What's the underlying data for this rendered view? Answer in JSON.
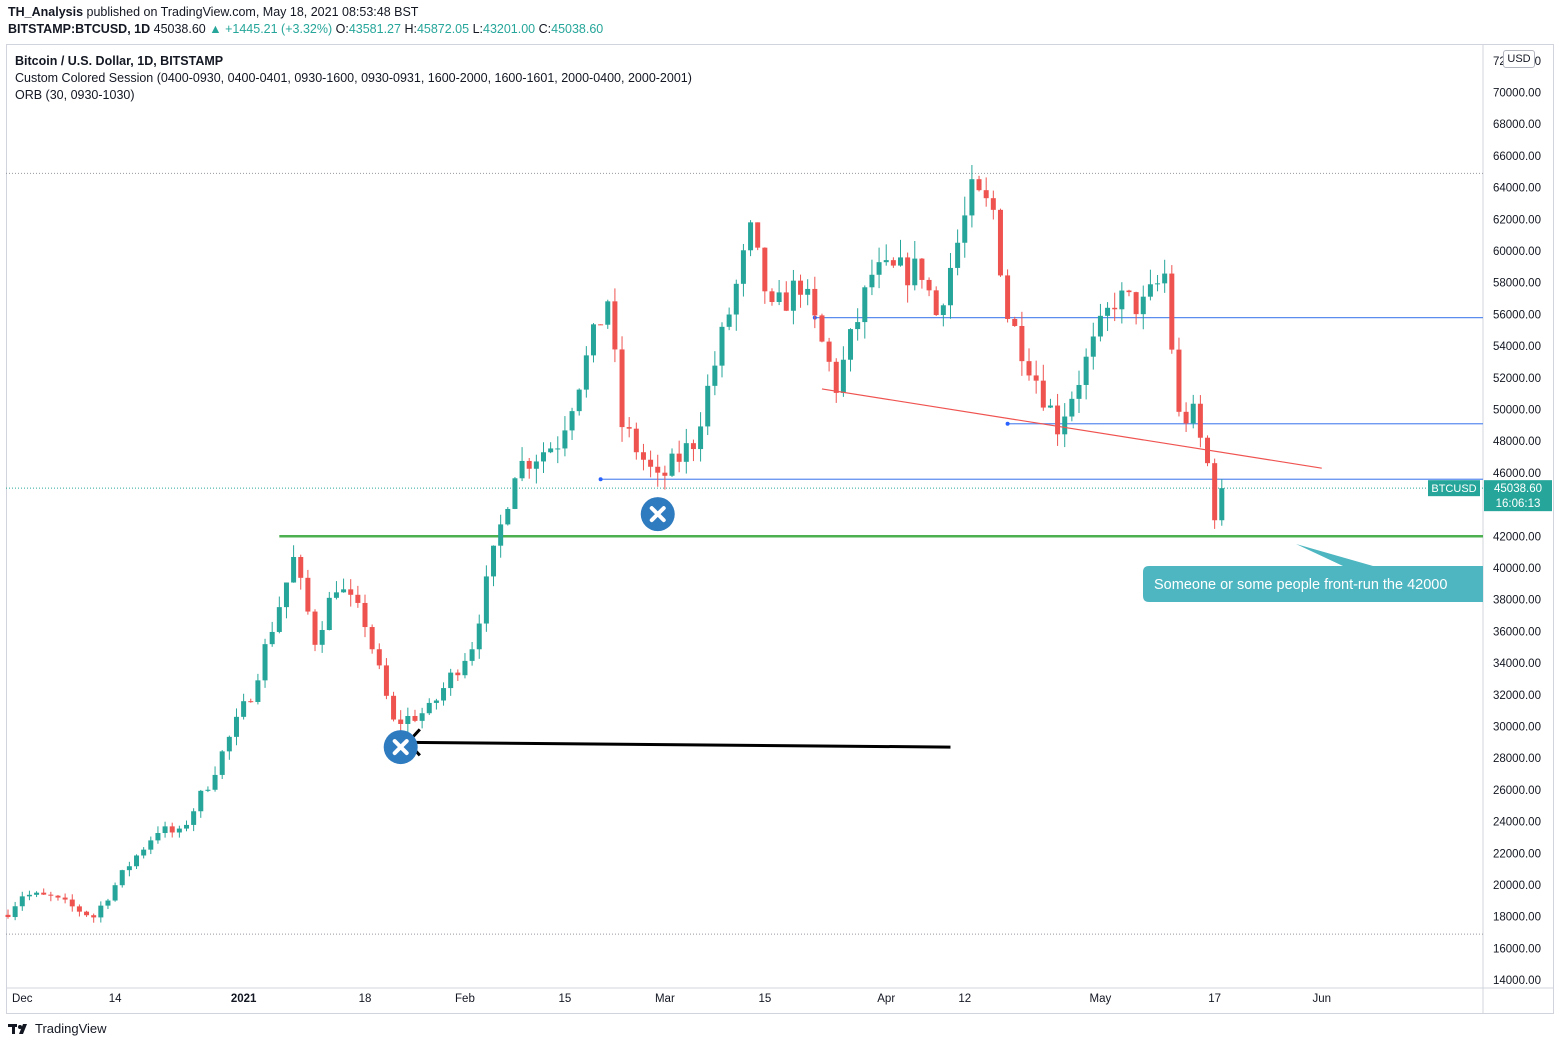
{
  "header": {
    "author": "TH_Analysis",
    "published": "published on TradingView.com, May 18, 2021 08:53:48 BST",
    "symbol": "BITSTAMP:BTCUSD, 1D",
    "last": "45038.60",
    "change": "▲ +1445.21 (+3.32%)",
    "o_label": "O:",
    "o_value": "43581.27",
    "h_label": "H:",
    "h_value": "45872.05",
    "l_label": "L:",
    "l_value": "43201.00",
    "c_label": "C:",
    "c_value": "45038.60"
  },
  "legend": {
    "title": "Bitcoin / U.S. Dollar, 1D, BITSTAMP",
    "session": "Custom Colored Session (0400-0930, 0400-0401, 0930-1600, 0930-0931, 1600-2000, 1600-1601, 2000-0400, 2000-2001)",
    "orb": "ORB (30, 0930-1030)"
  },
  "currency": "USD",
  "price_label": {
    "symbol": "BTCUSD",
    "price": "45038.60",
    "countdown": "16:06:13"
  },
  "callout": "Someone or some people front-run the 42000",
  "footer": {
    "brand": "TradingView"
  },
  "colors": {
    "up": "#26a69a",
    "down": "#ef5350",
    "green_line": "#4caf50",
    "blue_line": "#5b8def",
    "red_line": "#ef5350",
    "callout": "#4db6c0",
    "marker": "#2f7bbf"
  },
  "chart_data": {
    "type": "candlestick",
    "ylim": [
      13500,
      73000
    ],
    "y_ticks": [
      72000,
      70000,
      68000,
      66000,
      64000,
      62000,
      60000,
      58000,
      56000,
      54000,
      52000,
      50000,
      48000,
      46000,
      44000,
      42000,
      40000,
      38000,
      36000,
      34000,
      32000,
      30000,
      28000,
      26000,
      24000,
      22000,
      20000,
      18000,
      16000,
      14000
    ],
    "x_ticks": [
      {
        "label": "Dec",
        "date": "2020-12-01"
      },
      {
        "label": "14",
        "date": "2020-12-14"
      },
      {
        "label": "2021",
        "date": "2021-01-01"
      },
      {
        "label": "18",
        "date": "2021-01-18"
      },
      {
        "label": "Feb",
        "date": "2021-02-01"
      },
      {
        "label": "15",
        "date": "2021-02-15"
      },
      {
        "label": "Mar",
        "date": "2021-03-01"
      },
      {
        "label": "15",
        "date": "2021-03-15"
      },
      {
        "label": "Apr",
        "date": "2021-04-01"
      },
      {
        "label": "12",
        "date": "2021-04-12"
      },
      {
        "label": "May",
        "date": "2021-05-01"
      },
      {
        "label": "17",
        "date": "2021-05-17"
      },
      {
        "label": "Jun",
        "date": "2021-06-01"
      }
    ],
    "start_date": "2020-11-29",
    "anchors": [
      {
        "date": "2020-11-29",
        "price": 18300
      },
      {
        "date": "2020-12-01",
        "price": 19400
      },
      {
        "date": "2020-12-05",
        "price": 19200
      },
      {
        "date": "2020-12-11",
        "price": 18000
      },
      {
        "date": "2020-12-16",
        "price": 21300
      },
      {
        "date": "2020-12-20",
        "price": 23500
      },
      {
        "date": "2020-12-23",
        "price": 23200
      },
      {
        "date": "2020-12-27",
        "price": 26400
      },
      {
        "date": "2021-01-02",
        "price": 32100
      },
      {
        "date": "2021-01-08",
        "price": 40500
      },
      {
        "date": "2021-01-11",
        "price": 35500
      },
      {
        "date": "2021-01-14",
        "price": 39000
      },
      {
        "date": "2021-01-18",
        "price": 36600
      },
      {
        "date": "2021-01-22",
        "price": 30200
      },
      {
        "date": "2021-01-27",
        "price": 31000
      },
      {
        "date": "2021-02-02",
        "price": 35200
      },
      {
        "date": "2021-02-08",
        "price": 46300
      },
      {
        "date": "2021-02-14",
        "price": 48000
      },
      {
        "date": "2021-02-21",
        "price": 57000
      },
      {
        "date": "2021-02-23",
        "price": 49000
      },
      {
        "date": "2021-02-28",
        "price": 45400
      },
      {
        "date": "2021-03-05",
        "price": 48000
      },
      {
        "date": "2021-03-13",
        "price": 61000
      },
      {
        "date": "2021-03-16",
        "price": 56000
      },
      {
        "date": "2021-03-20",
        "price": 58000
      },
      {
        "date": "2021-03-25",
        "price": 51500
      },
      {
        "date": "2021-03-30",
        "price": 58500
      },
      {
        "date": "2021-04-06",
        "price": 58800
      },
      {
        "date": "2021-04-08",
        "price": 56000
      },
      {
        "date": "2021-04-13",
        "price": 63500
      },
      {
        "date": "2021-04-16",
        "price": 62500
      },
      {
        "date": "2021-04-18",
        "price": 56000
      },
      {
        "date": "2021-04-25",
        "price": 49000
      },
      {
        "date": "2021-05-03",
        "price": 57000
      },
      {
        "date": "2021-05-07",
        "price": 56500
      },
      {
        "date": "2021-05-10",
        "price": 58500
      },
      {
        "date": "2021-05-12",
        "price": 49500
      },
      {
        "date": "2021-05-14",
        "price": 49600
      },
      {
        "date": "2021-05-16",
        "price": 46500
      },
      {
        "date": "2021-05-17",
        "price": 43600
      },
      {
        "date": "2021-05-18",
        "price": 45038
      }
    ],
    "horizontal_lines": [
      {
        "name": "green-support",
        "price": 42000,
        "from": "2021-01-06"
      },
      {
        "name": "blue-45600",
        "price": 45600,
        "from": "2021-02-20"
      },
      {
        "name": "blue-49100",
        "price": 49100,
        "from": "2021-04-18"
      },
      {
        "name": "blue-55800",
        "price": 55800,
        "from": "2021-03-22"
      }
    ],
    "dotted_levels": [
      64900,
      16900
    ],
    "trendline": {
      "from": {
        "date": "2021-03-23",
        "price": 51300
      },
      "to": {
        "date": "2021-06-01",
        "price": 46300
      }
    },
    "markers": [
      {
        "date": "2021-02-28",
        "price": 43400
      },
      {
        "date": "2021-01-23",
        "price": 28700
      }
    ],
    "arrow": {
      "from": {
        "date": "2021-04-10",
        "price": 28700
      },
      "to": {
        "date": "2021-01-24",
        "price": 29000
      }
    },
    "grid": false,
    "legend": "top-left"
  }
}
